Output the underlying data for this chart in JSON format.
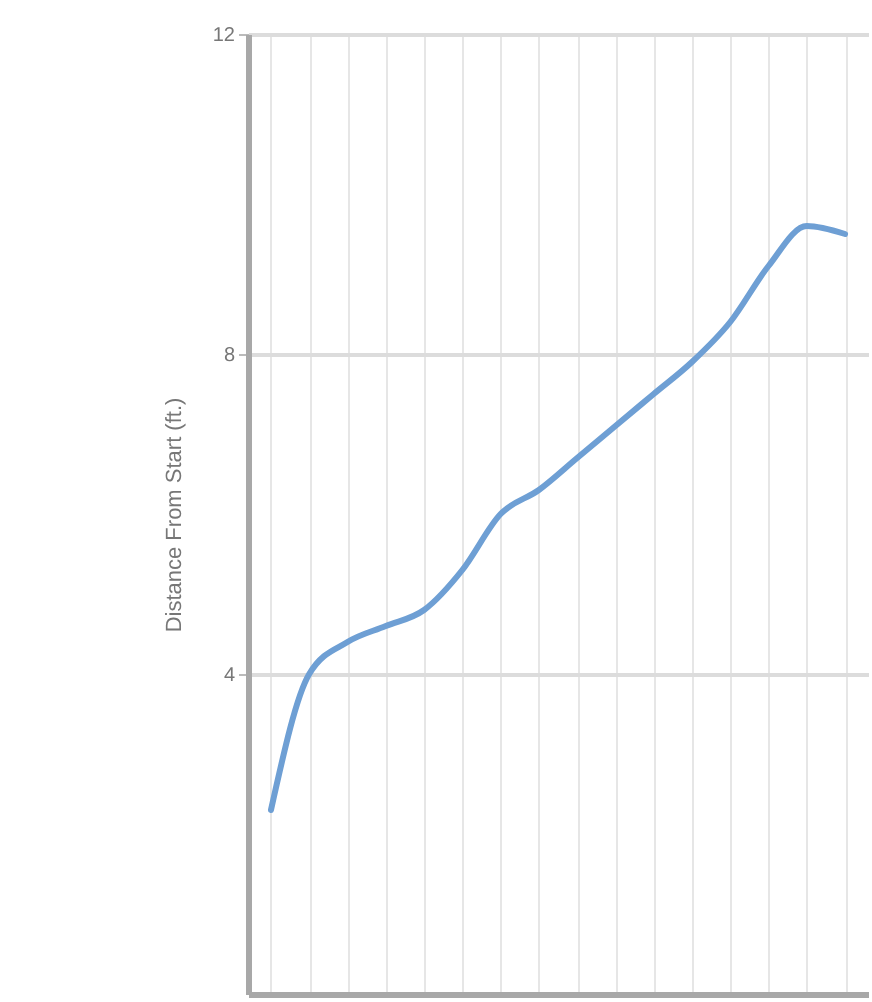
{
  "chart_data": {
    "type": "line",
    "ylabel": "Distance From Start (ft.)",
    "categories": [
      null,
      null,
      null,
      null,
      null,
      null,
      null,
      null,
      null,
      null,
      null,
      null,
      null,
      null,
      null,
      null
    ],
    "series": [
      {
        "color": "#6e9fd4",
        "values": [
          2.3,
          4.0,
          4.4,
          4.6,
          4.8,
          5.3,
          6.0,
          6.3,
          6.7,
          7.1,
          7.5,
          7.9,
          8.4,
          9.1,
          9.6,
          9.5
        ]
      }
    ],
    "ylim": [
      0,
      12
    ],
    "yticks": [
      4,
      8,
      12
    ],
    "grid": true,
    "tick_labels": "y",
    "marker": "none",
    "line_style": "solid"
  }
}
